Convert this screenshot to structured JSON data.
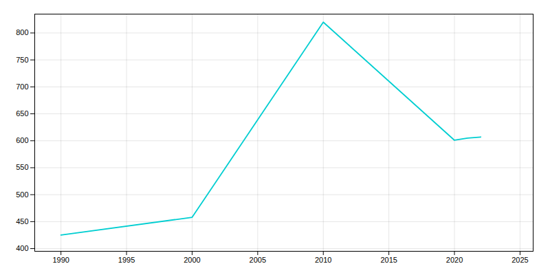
{
  "chart_data": {
    "type": "line",
    "x": [
      1990,
      2000,
      2010,
      2020,
      2021,
      2022
    ],
    "values": [
      425,
      458,
      820,
      601,
      605,
      607
    ],
    "color": "#00CED1",
    "xlim": [
      1988,
      2026
    ],
    "ylim": [
      395,
      835
    ],
    "xticks": [
      1990,
      1995,
      2000,
      2005,
      2010,
      2015,
      2020,
      2025
    ],
    "yticks": [
      400,
      450,
      500,
      550,
      600,
      650,
      700,
      750,
      800
    ],
    "grid": true
  }
}
